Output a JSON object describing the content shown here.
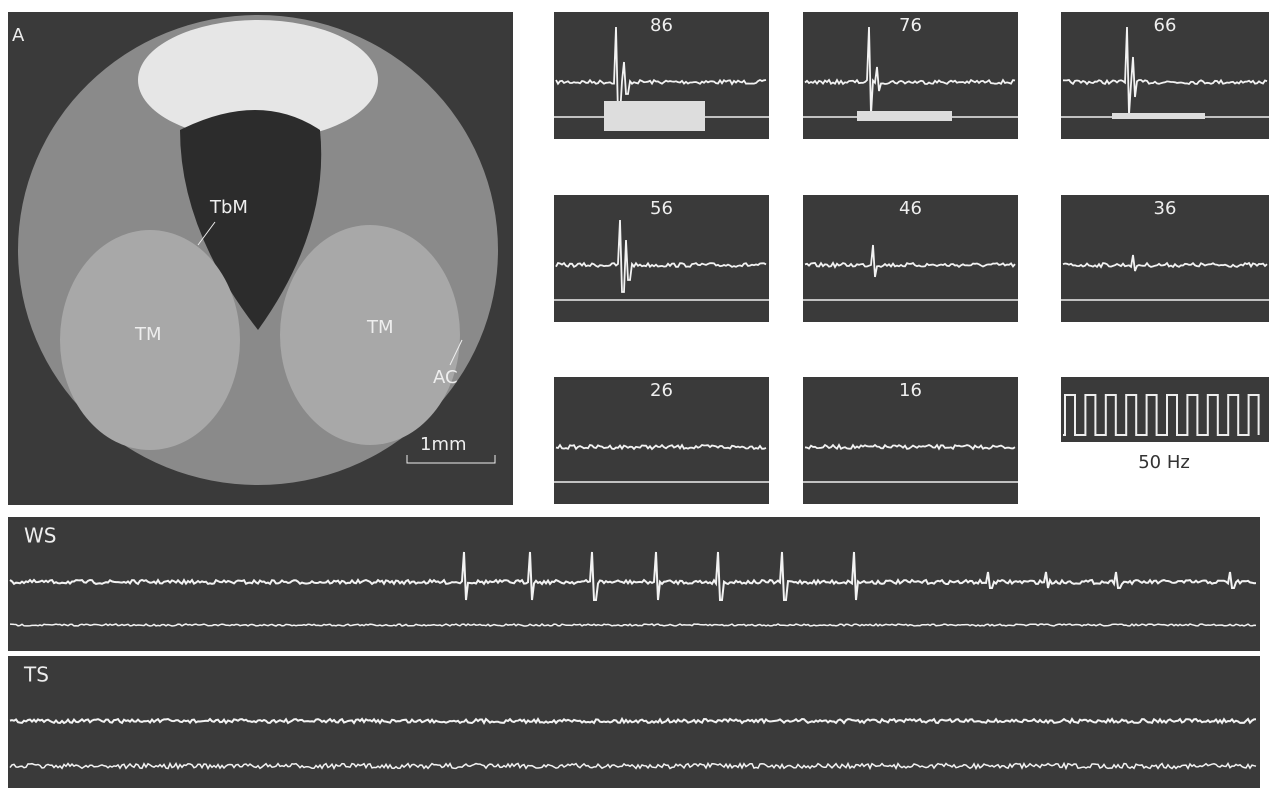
{
  "photo": {
    "panel_label": "A",
    "labels": [
      "TbM",
      "TM",
      "TM",
      "AC"
    ],
    "scale_bar": "1mm"
  },
  "traces": [
    "86",
    "76",
    "66",
    "56",
    "46",
    "36",
    "26",
    "16"
  ],
  "calibration": "50 Hz",
  "strips": [
    "WS",
    "TS"
  ]
}
